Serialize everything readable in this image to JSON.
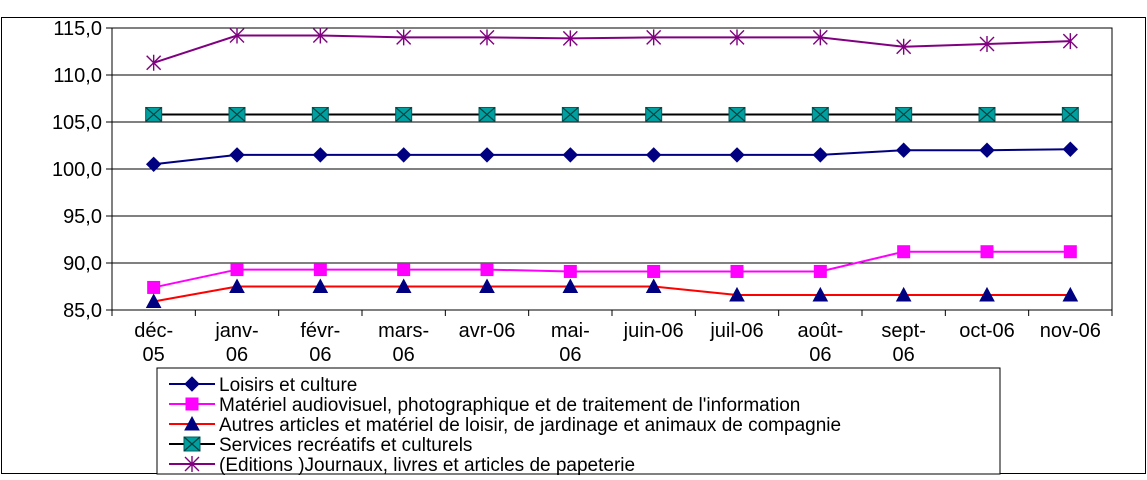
{
  "chart_data": {
    "type": "line",
    "categories": [
      [
        "déc-",
        "05"
      ],
      [
        "janv-",
        "06"
      ],
      [
        "févr-",
        "06"
      ],
      [
        "mars-",
        "06"
      ],
      [
        "avr-06"
      ],
      [
        "mai-",
        "06"
      ],
      [
        "juin-06"
      ],
      [
        "juil-06"
      ],
      [
        "août-",
        "06"
      ],
      [
        "sept-",
        "06"
      ],
      [
        "oct-06"
      ],
      [
        "nov-06"
      ]
    ],
    "ylim": [
      85,
      115
    ],
    "yticks": [
      "85,0",
      "90,0",
      "95,0",
      "100,0",
      "105,0",
      "110,0",
      "115,0"
    ],
    "grid": true,
    "legend_position": "bottom",
    "series": [
      {
        "name": "Loisirs et culture",
        "color": "#000080",
        "marker": "diamond",
        "values": [
          100.5,
          101.5,
          101.5,
          101.5,
          101.5,
          101.5,
          101.5,
          101.5,
          101.5,
          102.0,
          102.0,
          102.1
        ]
      },
      {
        "name": "Matériel audiovisuel, photographique et de traitement de l'information",
        "color": "#ff00ff",
        "marker": "square",
        "values": [
          87.4,
          89.3,
          89.3,
          89.3,
          89.3,
          89.1,
          89.1,
          89.1,
          89.1,
          91.2,
          91.2,
          91.2
        ]
      },
      {
        "name": "Autres articles et matériel de loisir, de jardinage et animaux de compagnie",
        "color": "#ff0000",
        "marker": "triangle",
        "marker_fill": "#000080",
        "values": [
          85.9,
          87.5,
          87.5,
          87.5,
          87.5,
          87.5,
          87.5,
          86.6,
          86.6,
          86.6,
          86.6,
          86.6
        ]
      },
      {
        "name": "Services recréatifs et culturels",
        "color": "#000000",
        "marker": "xsquare",
        "marker_fill": "#00a0a0",
        "values": [
          105.8,
          105.8,
          105.8,
          105.8,
          105.8,
          105.8,
          105.8,
          105.8,
          105.8,
          105.8,
          105.8,
          105.8
        ]
      },
      {
        "name": "(Editions )Journaux, livres et articles de papeterie",
        "color": "#800080",
        "marker": "star",
        "values": [
          111.3,
          114.2,
          114.2,
          114.0,
          114.0,
          113.9,
          114.0,
          114.0,
          114.0,
          113.0,
          113.3,
          113.6
        ]
      }
    ]
  }
}
